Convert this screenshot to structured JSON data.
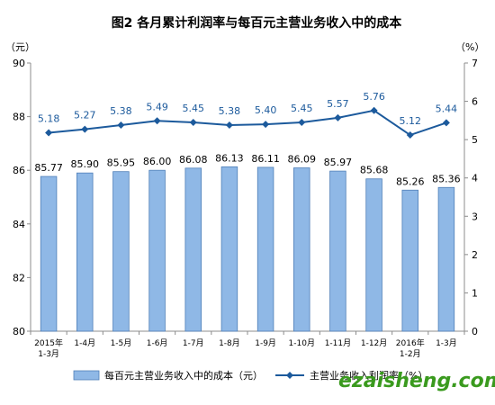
{
  "chart_data": {
    "type": "bar",
    "title": "图2  各月累计利润率与每百元主营业务收入中的成本",
    "left_unit": "（元）",
    "right_unit": "（%）",
    "categories": [
      [
        "2015年",
        "1-3月"
      ],
      [
        "1-4月"
      ],
      [
        "1-5月"
      ],
      [
        "1-6月"
      ],
      [
        "1-7月"
      ],
      [
        "1-8月"
      ],
      [
        "1-9月"
      ],
      [
        "1-10月"
      ],
      [
        "1-11月"
      ],
      [
        "1-12月"
      ],
      [
        "2016年",
        "1-2月"
      ],
      [
        "1-3月"
      ]
    ],
    "left_axis": {
      "min": 80,
      "max": 90,
      "ticks": [
        "80",
        "82",
        "84",
        "86",
        "88",
        "90"
      ]
    },
    "right_axis": {
      "min": 0,
      "max": 7,
      "ticks": [
        "0",
        "1",
        "2",
        "3",
        "4",
        "5",
        "6",
        "7"
      ]
    },
    "series": [
      {
        "name": "每百元主营业务收入中的成本（元）",
        "type": "bar",
        "axis": "left",
        "color": "#8fb8e6",
        "values": [
          85.77,
          85.9,
          85.95,
          86.0,
          86.08,
          86.13,
          86.11,
          86.09,
          85.97,
          85.68,
          85.26,
          85.36
        ],
        "labels": [
          "85.77",
          "85.90",
          "85.95",
          "86.00",
          "86.08",
          "86.13",
          "86.11",
          "86.09",
          "85.97",
          "85.68",
          "85.26",
          "85.36"
        ]
      },
      {
        "name": "主营业务收入利润率（%）",
        "type": "line",
        "axis": "right",
        "color": "#1c5a9c",
        "values": [
          5.18,
          5.27,
          5.38,
          5.49,
          5.45,
          5.38,
          5.4,
          5.45,
          5.57,
          5.76,
          5.12,
          5.44
        ],
        "labels": [
          "5.18",
          "5.27",
          "5.38",
          "5.49",
          "5.45",
          "5.38",
          "5.40",
          "5.45",
          "5.57",
          "5.76",
          "5.12",
          "5.44"
        ]
      }
    ],
    "grid": false,
    "legend": "bottom"
  },
  "watermark": "ezaisheng.com"
}
